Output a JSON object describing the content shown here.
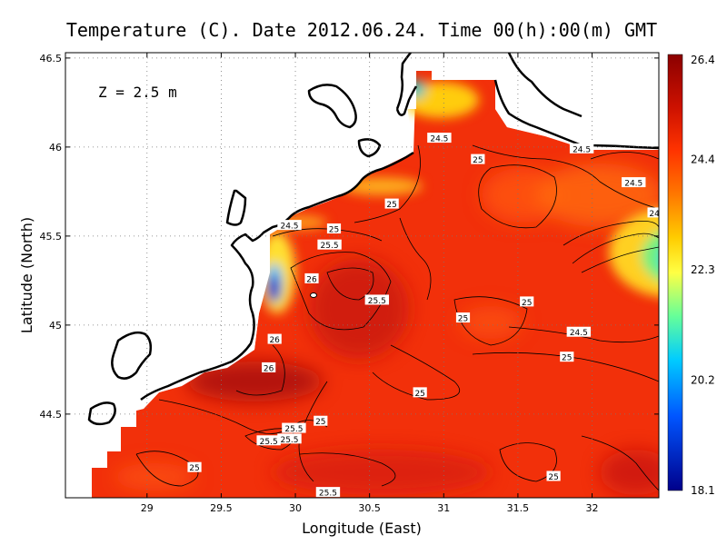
{
  "title": "Temperature (C). Date 2012.06.24. Time 00(h):00(m) GMT",
  "depth_annotation": "Z = 2.5 m",
  "chart_data": {
    "type": "heatmap",
    "title": "Temperature (C). Date 2012.06.24. Time 00(h):00(m) GMT",
    "xlabel": "Longitude (East)",
    "ylabel": "Latitude (North)",
    "xlim": [
      28.45,
      32.45
    ],
    "ylim": [
      44.03,
      46.53
    ],
    "x_ticks": [
      29,
      29.5,
      30,
      30.5,
      31,
      31.5,
      32
    ],
    "x_tick_labels": [
      "29",
      "29.5",
      "30",
      "30.5",
      "31",
      "31.5",
      "32"
    ],
    "y_ticks": [
      44.5,
      45,
      45.5,
      46,
      46.5
    ],
    "y_tick_labels": [
      "44.5",
      "45",
      "45.5",
      "46",
      "46.5"
    ],
    "grid": true,
    "colorbar": {
      "min": 18.1,
      "max": 26.4,
      "ticks": [
        "26.4",
        "24.4",
        "22.3",
        "20.2",
        "18.1"
      ],
      "colors": [
        "#8b0000",
        "#cc1100",
        "#ff3300",
        "#ff7700",
        "#ffcc00",
        "#ffff44",
        "#66ff99",
        "#00ccff",
        "#0055ff",
        "#00008b"
      ]
    },
    "contour_labels": [
      {
        "text": "24.5",
        "lon": 30.97,
        "lat": 46.05
      },
      {
        "text": "24.5",
        "lon": 31.93,
        "lat": 45.99
      },
      {
        "text": "24.5",
        "lon": 32.28,
        "lat": 45.8
      },
      {
        "text": "24",
        "lon": 32.42,
        "lat": 45.63
      },
      {
        "text": "25",
        "lon": 31.23,
        "lat": 45.93
      },
      {
        "text": "25",
        "lon": 30.65,
        "lat": 45.68
      },
      {
        "text": "24.5",
        "lon": 29.96,
        "lat": 45.56
      },
      {
        "text": "25",
        "lon": 30.26,
        "lat": 45.54
      },
      {
        "text": "25.5",
        "lon": 30.23,
        "lat": 45.45
      },
      {
        "text": "26",
        "lon": 30.11,
        "lat": 45.26
      },
      {
        "text": "25.5",
        "lon": 30.55,
        "lat": 45.14
      },
      {
        "text": "25",
        "lon": 31.56,
        "lat": 45.13
      },
      {
        "text": "25",
        "lon": 31.13,
        "lat": 45.04
      },
      {
        "text": "24.5",
        "lon": 31.91,
        "lat": 44.96
      },
      {
        "text": "25",
        "lon": 31.83,
        "lat": 44.82
      },
      {
        "text": "26",
        "lon": 29.86,
        "lat": 44.92
      },
      {
        "text": "26",
        "lon": 29.82,
        "lat": 44.76
      },
      {
        "text": "25",
        "lon": 30.84,
        "lat": 44.62
      },
      {
        "text": "25",
        "lon": 30.17,
        "lat": 44.46
      },
      {
        "text": "25.5",
        "lon": 29.99,
        "lat": 44.42
      },
      {
        "text": "25.5",
        "lon": 29.96,
        "lat": 44.36
      },
      {
        "text": "25.5",
        "lon": 29.82,
        "lat": 44.35
      },
      {
        "text": "25",
        "lon": 29.32,
        "lat": 44.2
      },
      {
        "text": "25",
        "lon": 31.74,
        "lat": 44.15
      },
      {
        "text": "25.5",
        "lon": 30.22,
        "lat": 44.06
      }
    ]
  }
}
